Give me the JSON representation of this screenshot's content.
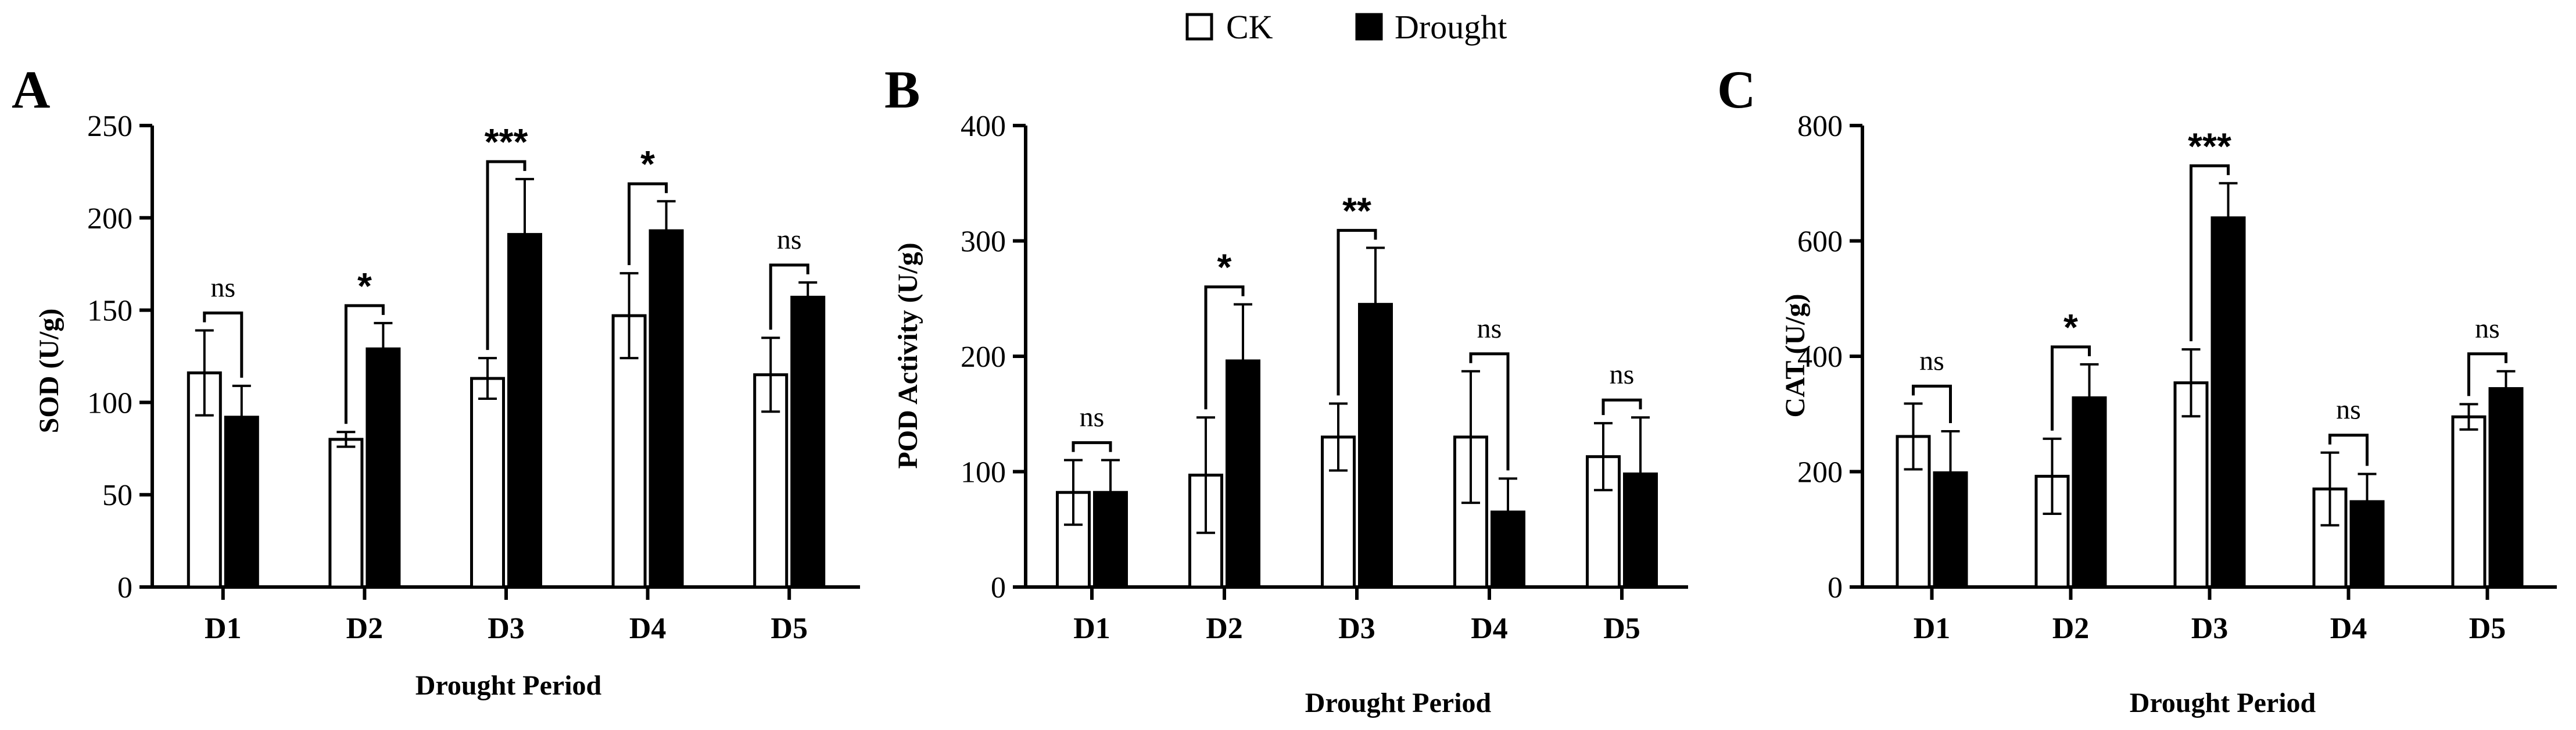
{
  "legend": {
    "items": [
      {
        "label": "CK",
        "fill": "#ffffff"
      },
      {
        "label": "Drought",
        "fill": "#000000"
      }
    ]
  },
  "colors": {
    "ck": "#ffffff",
    "drought": "#000000",
    "stroke": "#000000"
  },
  "chart_data": [
    {
      "type": "bar",
      "panel": "A",
      "title": "",
      "xlabel": "Drought Period",
      "ylabel": "SOD (U/g)",
      "categories": [
        "D1",
        "D2",
        "D3",
        "D4",
        "D5"
      ],
      "ylim": [
        0,
        250
      ],
      "yticks": [
        0,
        50,
        100,
        150,
        200,
        250
      ],
      "series": [
        {
          "name": "CK",
          "values": [
            116,
            80,
            113,
            147,
            115
          ],
          "errors": [
            23,
            4,
            11,
            23,
            20
          ]
        },
        {
          "name": "Drought",
          "values": [
            92,
            129,
            191,
            193,
            157
          ],
          "errors": [
            17,
            14,
            30,
            16,
            8
          ]
        }
      ],
      "significance": [
        "ns",
        "*",
        "***",
        "*",
        "ns"
      ]
    },
    {
      "type": "bar",
      "panel": "B",
      "title": "",
      "xlabel": "Drought Period",
      "ylabel": "POD Activity (U/g)",
      "categories": [
        "D1",
        "D2",
        "D3",
        "D4",
        "D5"
      ],
      "ylim": [
        0,
        400
      ],
      "yticks": [
        0,
        100,
        200,
        300,
        400
      ],
      "series": [
        {
          "name": "CK",
          "values": [
            82,
            97,
            130,
            130,
            113
          ],
          "errors": [
            28,
            50,
            29,
            57,
            29
          ]
        },
        {
          "name": "Drought",
          "values": [
            82,
            196,
            245,
            65,
            98
          ],
          "errors": [
            28,
            49,
            49,
            29,
            49
          ]
        }
      ],
      "significance": [
        "ns",
        "*",
        "**",
        "ns",
        "ns"
      ]
    },
    {
      "type": "bar",
      "panel": "C",
      "title": "",
      "xlabel": "Drought Period",
      "ylabel": "CAT (U/g)",
      "categories": [
        "D1",
        "D2",
        "D3",
        "D4",
        "D5"
      ],
      "ylim": [
        0,
        800
      ],
      "yticks": [
        0,
        200,
        400,
        600,
        800
      ],
      "series": [
        {
          "name": "CK",
          "values": [
            261,
            192,
            354,
            170,
            295
          ],
          "errors": [
            57,
            65,
            58,
            63,
            22
          ]
        },
        {
          "name": "Drought",
          "values": [
            198,
            328,
            640,
            148,
            344
          ],
          "errors": [
            72,
            58,
            60,
            48,
            30
          ]
        }
      ],
      "significance": [
        "ns",
        "*",
        "***",
        "ns",
        "ns"
      ]
    }
  ]
}
